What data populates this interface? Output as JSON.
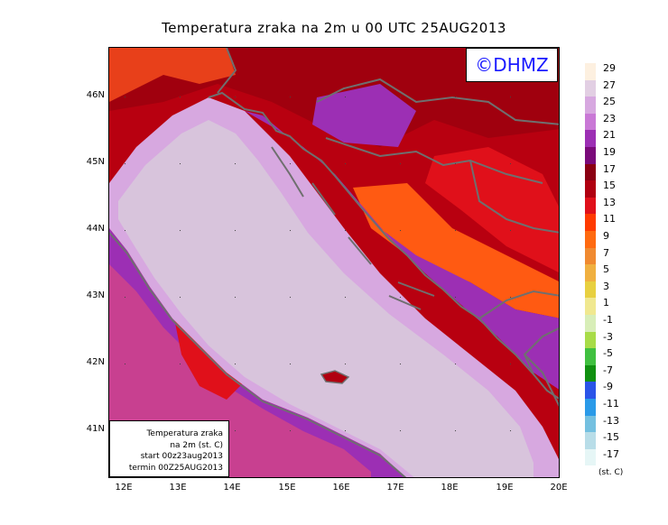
{
  "title": "Temperatura zraka na 2m u 00 UTC 25AUG2013",
  "logo": "©DHMZ",
  "info_box": {
    "line1": "Temperatura zraka",
    "line2": "na 2m (st. C)",
    "line3": "start 00z23aug2013",
    "line4": "termin 00Z25AUG2013"
  },
  "lat_labels": [
    "46N",
    "45N",
    "44N",
    "43N",
    "42N",
    "41N"
  ],
  "lon_labels": [
    "12E",
    "13E",
    "14E",
    "15E",
    "16E",
    "17E",
    "18E",
    "19E",
    "20E"
  ],
  "legend": {
    "unit": "(st. C)",
    "labels": [
      "29",
      "27",
      "25",
      "23",
      "21",
      "19",
      "17",
      "15",
      "13",
      "11",
      "9",
      "7",
      "5",
      "3",
      "1",
      "-1",
      "-3",
      "-5",
      "-7",
      "-9",
      "-11",
      "-13",
      "-15",
      "-17"
    ],
    "colors": [
      "#fdf0e0",
      "#e2cfe3",
      "#d7a8e0",
      "#c978d6",
      "#9c2fb4",
      "#7a0a7a",
      "#8a0012",
      "#b00010",
      "#e0101a",
      "#ff3a00",
      "#ff6a10",
      "#f08a30",
      "#f0b040",
      "#e8d040",
      "#f0e890",
      "#d8eeb8",
      "#a8dc48",
      "#40c040",
      "#109010",
      "#2a54e8",
      "#2a9ae8",
      "#74c0e0",
      "#b8dde8",
      "#e6f6f6"
    ]
  },
  "map": {
    "sea_color": "#d8c4dc",
    "coast_color": "#6f6f6f"
  }
}
